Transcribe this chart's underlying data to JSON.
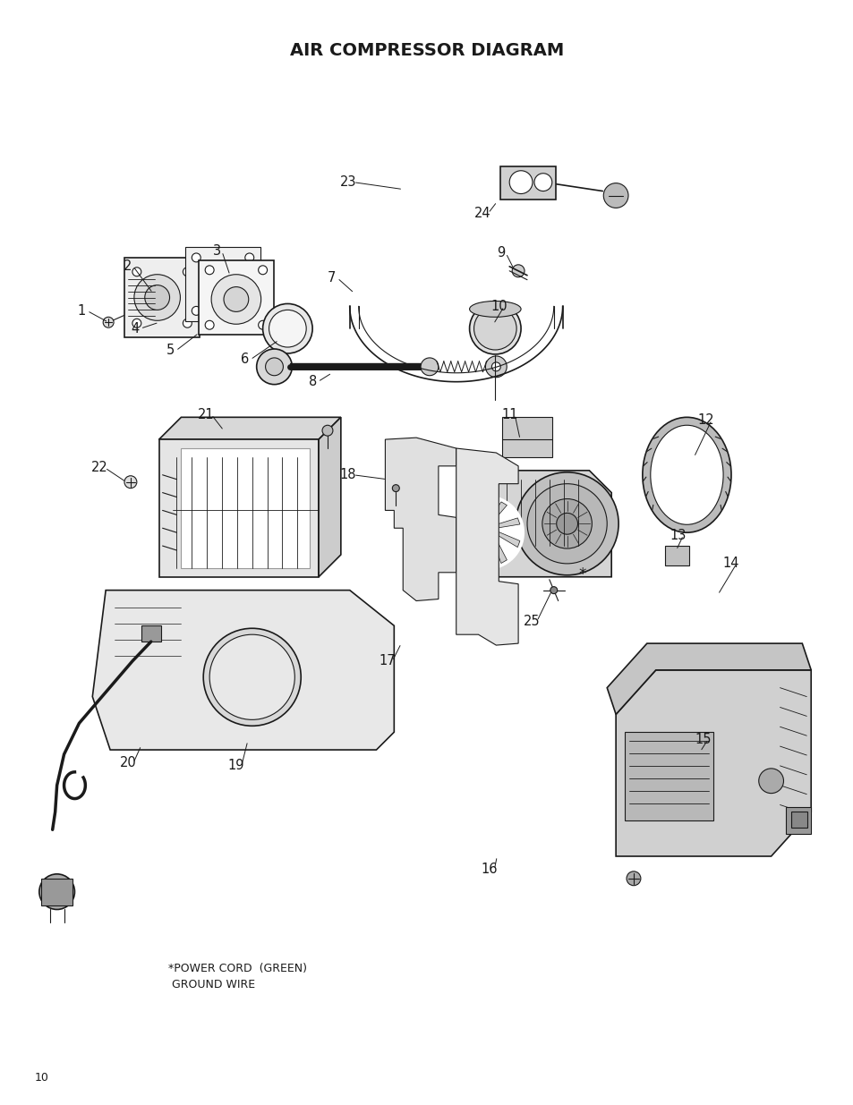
{
  "title": "AIR COMPRESSOR DIAGRAM",
  "page_number": "10",
  "bg": "#ffffff",
  "fg": "#1a1a1a",
  "footnote": "*POWER CORD  (GREEN)\n GROUND WIRE"
}
